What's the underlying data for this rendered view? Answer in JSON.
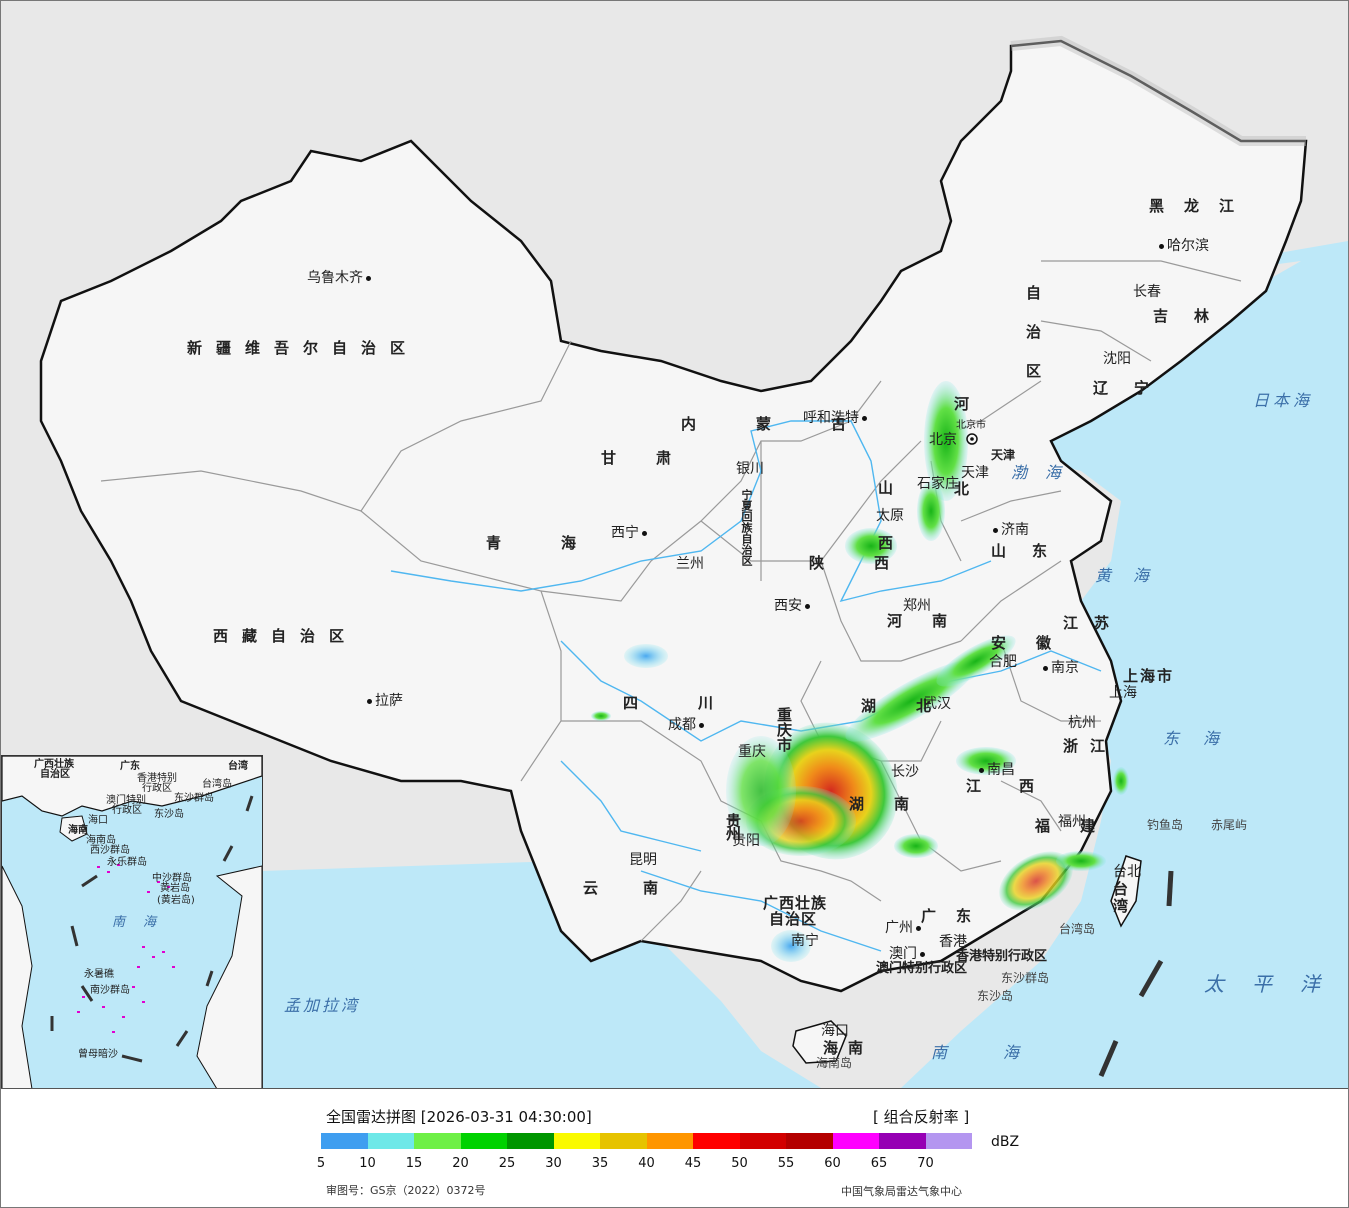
{
  "map": {
    "provinces": [
      {
        "name": "新疆维吾尔自治区"
      },
      {
        "name": "西藏自治区"
      },
      {
        "name": "青海"
      },
      {
        "name": "甘肃"
      },
      {
        "name": "四川"
      },
      {
        "name": "云南"
      },
      {
        "name": "内蒙古"
      },
      {
        "name": "黑龙江"
      },
      {
        "name": "吉林"
      },
      {
        "name": "辽宁"
      },
      {
        "name": "山东"
      },
      {
        "name": "陕西"
      },
      {
        "name": "河南"
      },
      {
        "name": "湖北"
      },
      {
        "name": "湖南"
      },
      {
        "name": "江西"
      },
      {
        "name": "福建"
      },
      {
        "name": "浙江"
      },
      {
        "name": "江苏"
      },
      {
        "name": "安徽"
      },
      {
        "name": "广东"
      },
      {
        "name": "海南"
      }
    ],
    "provinces_vertical": [
      {
        "name": "自治区"
      },
      {
        "name": "山西"
      },
      {
        "name": "河北"
      },
      {
        "name": "贵州"
      },
      {
        "name": "重庆市"
      },
      {
        "name": "宁夏回族自治区"
      }
    ],
    "municipalities": [
      {
        "name": "上海市"
      },
      {
        "name": "广西壮族"
      },
      {
        "name": "自治区"
      },
      {
        "name": "香港特别行政区"
      },
      {
        "name": "澳门特别行政区"
      },
      {
        "name": "北京市"
      },
      {
        "name": "天津"
      }
    ],
    "cities": [
      {
        "name": "乌鲁木齐"
      },
      {
        "name": "拉萨"
      },
      {
        "name": "西宁"
      },
      {
        "name": "兰州"
      },
      {
        "name": "银川"
      },
      {
        "name": "呼和浩特"
      },
      {
        "name": "哈尔滨"
      },
      {
        "name": "长春"
      },
      {
        "name": "沈阳"
      },
      {
        "name": "北京"
      },
      {
        "name": "天津"
      },
      {
        "name": "石家庄"
      },
      {
        "name": "太原"
      },
      {
        "name": "济南"
      },
      {
        "name": "郑州"
      },
      {
        "name": "西安"
      },
      {
        "name": "成都"
      },
      {
        "name": "重庆"
      },
      {
        "name": "武汉"
      },
      {
        "name": "合肥"
      },
      {
        "name": "南京"
      },
      {
        "name": "上海"
      },
      {
        "name": "杭州"
      },
      {
        "name": "长沙"
      },
      {
        "name": "南昌"
      },
      {
        "name": "福州"
      },
      {
        "name": "贵阳"
      },
      {
        "name": "昆明"
      },
      {
        "name": "南宁"
      },
      {
        "name": "广州"
      },
      {
        "name": "香港"
      },
      {
        "name": "澳门"
      },
      {
        "name": "海口"
      },
      {
        "name": "台北"
      }
    ],
    "seas": [
      {
        "name": "日本海"
      },
      {
        "name": "渤海"
      },
      {
        "name": "黄海"
      },
      {
        "name": "东海"
      },
      {
        "name": "太平洋"
      },
      {
        "name": "南海"
      },
      {
        "name": "孟加拉湾"
      }
    ],
    "islands": [
      {
        "name": "钓鱼岛"
      },
      {
        "name": "赤尾屿"
      },
      {
        "name": "台湾岛"
      },
      {
        "name": "东沙群岛"
      },
      {
        "name": "东沙岛"
      },
      {
        "name": "海南岛"
      },
      {
        "name": "台湾"
      }
    ],
    "inset": {
      "labels": [
        {
          "name": "广西壮族"
        },
        {
          "name": "自治区"
        },
        {
          "name": "广东"
        },
        {
          "name": "台湾"
        },
        {
          "name": "香港特别"
        },
        {
          "name": "行政区"
        },
        {
          "name": "澳门特别"
        },
        {
          "name": "行政区"
        },
        {
          "name": "东沙群岛"
        },
        {
          "name": "东沙岛"
        },
        {
          "name": "台湾岛"
        },
        {
          "name": "海口"
        },
        {
          "name": "海南"
        },
        {
          "name": "西沙群岛"
        },
        {
          "name": "永乐群岛"
        },
        {
          "name": "中沙群岛"
        },
        {
          "name": "(黄岩岛)"
        },
        {
          "name": "南海"
        },
        {
          "name": "永暑礁"
        },
        {
          "name": "南沙群岛"
        },
        {
          "name": "曾母暗沙"
        },
        {
          "name": "海南岛"
        },
        {
          "name": "黄岩岛"
        }
      ]
    }
  },
  "legend": {
    "title": "全国雷达拼图 [2026-03-31 04:30:00]",
    "product": "[ 组合反射率 ]",
    "unit": "dBZ",
    "colors": [
      "#3f9ef0",
      "#6ee8e8",
      "#6ef046",
      "#00d200",
      "#009600",
      "#fafa00",
      "#e6c300",
      "#ff9600",
      "#ff0000",
      "#d20000",
      "#b40000",
      "#ff00ff",
      "#9600b4",
      "#b496f0"
    ],
    "ticks": [
      "5",
      "10",
      "15",
      "20",
      "25",
      "30",
      "35",
      "40",
      "45",
      "50",
      "55",
      "60",
      "65",
      "70"
    ],
    "approval": "审图号：GS京（2022）0372号",
    "source": "中国气象局雷达气象中心"
  }
}
